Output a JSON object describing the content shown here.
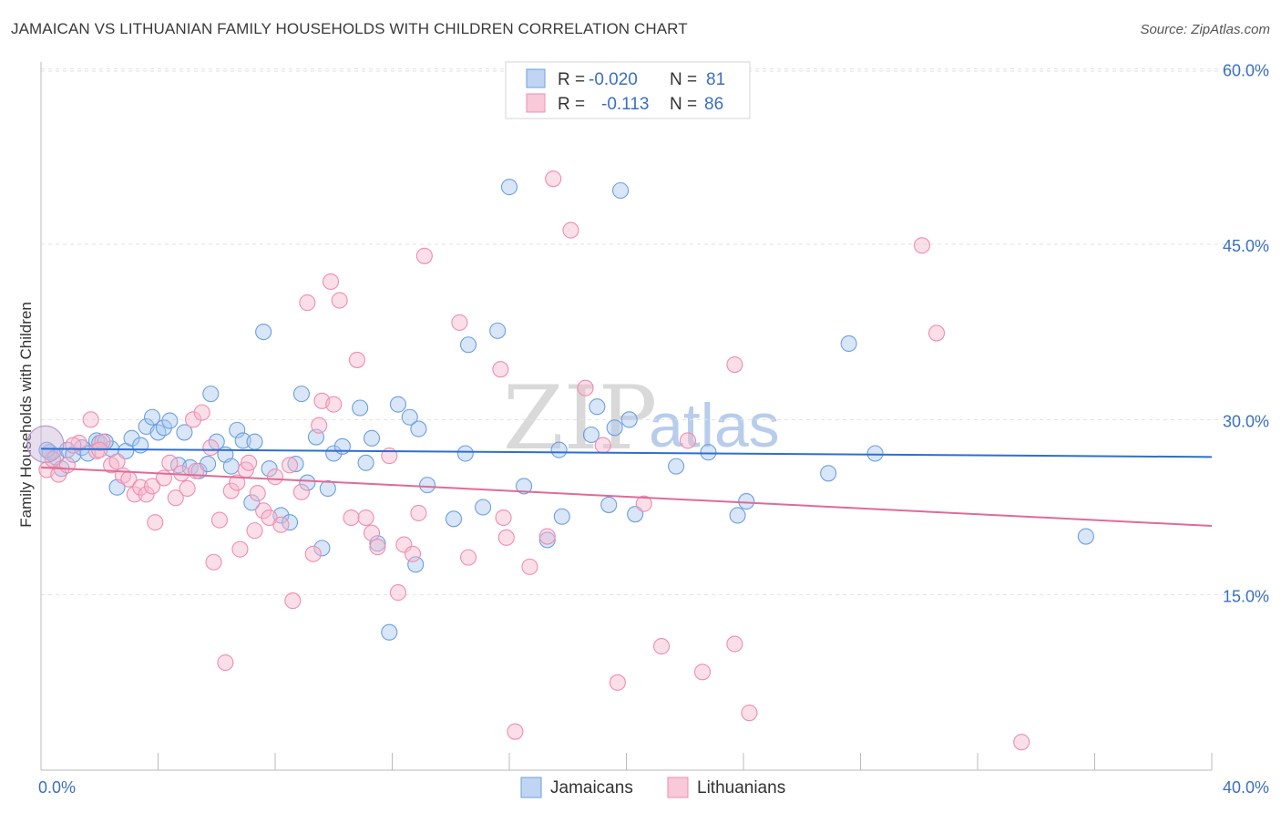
{
  "title": "JAMAICAN VS LITHUANIAN FAMILY HOUSEHOLDS WITH CHILDREN CORRELATION CHART",
  "source": "Source: ZipAtlas.com",
  "watermark": {
    "zip": "ZIP",
    "atlas": "atlas"
  },
  "legend": {
    "rows": [
      {
        "r_label": "R =",
        "r_value": "-0.020",
        "n_label": "N =",
        "n_value": "81",
        "color": "#a9c7ef"
      },
      {
        "r_label": "R =",
        "r_value": "-0.113",
        "n_label": "N =",
        "n_value": "86",
        "color": "#f6b7cb"
      }
    ]
  },
  "bottom_legend": [
    {
      "label": "Jamaicans",
      "color": "#a9c7ef"
    },
    {
      "label": "Lithuanians",
      "color": "#f6b7cb"
    }
  ],
  "chart_data": {
    "type": "scatter",
    "title": "JAMAICAN VS LITHUANIAN FAMILY HOUSEHOLDS WITH CHILDREN CORRELATION CHART",
    "xlabel": "",
    "ylabel": "Family Households with Children",
    "xlim": [
      0,
      40
    ],
    "ylim": [
      0,
      62
    ],
    "x_tick_labels": [
      "0.0%",
      "40.0%"
    ],
    "y_ticks": [
      15,
      30,
      45,
      60
    ],
    "y_tick_labels": [
      "15.0%",
      "30.0%",
      "45.0%",
      "60.0%"
    ],
    "grid": true,
    "series": [
      {
        "name": "Jamaicans",
        "color": "#6c9fe0",
        "line_color": "#2e6fd0",
        "trend": {
          "x": [
            0,
            40
          ],
          "y": [
            27.5,
            26.8
          ]
        },
        "points": [
          [
            0.3,
            27.2
          ],
          [
            0.5,
            26.8
          ],
          [
            0.7,
            25.8
          ],
          [
            0.9,
            27.4
          ],
          [
            1.1,
            27.0
          ],
          [
            1.4,
            27.6
          ],
          [
            1.6,
            27.1
          ],
          [
            1.9,
            28.2
          ],
          [
            2.0,
            28.0
          ],
          [
            2.4,
            27.5
          ],
          [
            2.6,
            24.2
          ],
          [
            2.9,
            27.3
          ],
          [
            3.1,
            28.4
          ],
          [
            3.4,
            27.8
          ],
          [
            3.6,
            29.4
          ],
          [
            3.8,
            30.2
          ],
          [
            4.0,
            28.9
          ],
          [
            4.2,
            29.3
          ],
          [
            4.4,
            29.9
          ],
          [
            4.7,
            26.1
          ],
          [
            4.9,
            28.9
          ],
          [
            5.1,
            25.9
          ],
          [
            5.4,
            25.6
          ],
          [
            5.7,
            26.2
          ],
          [
            5.8,
            32.2
          ],
          [
            6.0,
            28.1
          ],
          [
            6.3,
            27.0
          ],
          [
            6.5,
            26.0
          ],
          [
            6.7,
            29.1
          ],
          [
            6.9,
            28.2
          ],
          [
            7.2,
            22.9
          ],
          [
            7.3,
            28.1
          ],
          [
            7.6,
            37.5
          ],
          [
            7.8,
            25.8
          ],
          [
            8.2,
            21.8
          ],
          [
            8.5,
            21.2
          ],
          [
            8.7,
            26.2
          ],
          [
            8.9,
            32.2
          ],
          [
            9.1,
            24.6
          ],
          [
            9.4,
            28.5
          ],
          [
            9.6,
            19.0
          ],
          [
            9.8,
            24.1
          ],
          [
            10.0,
            27.1
          ],
          [
            10.3,
            27.7
          ],
          [
            10.9,
            31.0
          ],
          [
            11.1,
            26.3
          ],
          [
            11.3,
            28.4
          ],
          [
            11.5,
            19.4
          ],
          [
            11.9,
            11.8
          ],
          [
            12.2,
            31.3
          ],
          [
            12.6,
            30.2
          ],
          [
            12.9,
            29.2
          ],
          [
            12.8,
            17.6
          ],
          [
            13.2,
            24.4
          ],
          [
            14.1,
            21.5
          ],
          [
            14.5,
            27.1
          ],
          [
            14.6,
            36.4
          ],
          [
            15.1,
            22.5
          ],
          [
            15.6,
            37.6
          ],
          [
            16.0,
            49.9
          ],
          [
            16.5,
            24.3
          ],
          [
            17.3,
            19.7
          ],
          [
            17.7,
            27.4
          ],
          [
            17.8,
            21.7
          ],
          [
            18.8,
            28.7
          ],
          [
            19.0,
            31.1
          ],
          [
            19.6,
            29.3
          ],
          [
            19.8,
            49.6
          ],
          [
            19.4,
            22.7
          ],
          [
            20.1,
            30.0
          ],
          [
            20.3,
            21.9
          ],
          [
            21.7,
            26.0
          ],
          [
            22.8,
            27.2
          ],
          [
            23.8,
            21.8
          ],
          [
            24.1,
            23.0
          ],
          [
            26.9,
            25.4
          ],
          [
            27.6,
            36.5
          ],
          [
            28.5,
            27.1
          ],
          [
            35.7,
            20.0
          ],
          [
            0.2,
            27.4
          ],
          [
            2.2,
            28.1
          ]
        ]
      },
      {
        "name": "Lithuanians",
        "color": "#f08db0",
        "line_color": "#e06b97",
        "trend": {
          "x": [
            0,
            40
          ],
          "y": [
            25.9,
            20.9
          ]
        },
        "points": [
          [
            0.2,
            25.7
          ],
          [
            0.4,
            26.6
          ],
          [
            0.6,
            25.3
          ],
          [
            0.9,
            26.1
          ],
          [
            1.3,
            28.0
          ],
          [
            1.7,
            30.0
          ],
          [
            1.9,
            27.3
          ],
          [
            2.1,
            28.1
          ],
          [
            2.4,
            26.1
          ],
          [
            2.6,
            26.4
          ],
          [
            2.8,
            25.2
          ],
          [
            3.0,
            24.9
          ],
          [
            3.2,
            23.6
          ],
          [
            3.4,
            24.2
          ],
          [
            3.6,
            23.6
          ],
          [
            3.8,
            24.3
          ],
          [
            3.9,
            21.2
          ],
          [
            4.2,
            25.0
          ],
          [
            4.4,
            26.3
          ],
          [
            4.6,
            23.3
          ],
          [
            4.8,
            25.4
          ],
          [
            5.0,
            24.1
          ],
          [
            5.2,
            30.0
          ],
          [
            5.5,
            30.6
          ],
          [
            5.8,
            27.6
          ],
          [
            5.9,
            17.8
          ],
          [
            6.1,
            21.4
          ],
          [
            6.3,
            9.2
          ],
          [
            6.5,
            23.9
          ],
          [
            6.7,
            24.6
          ],
          [
            6.8,
            18.9
          ],
          [
            7.0,
            25.7
          ],
          [
            7.1,
            26.3
          ],
          [
            7.3,
            20.5
          ],
          [
            7.4,
            23.7
          ],
          [
            7.6,
            22.2
          ],
          [
            7.8,
            21.6
          ],
          [
            8.0,
            25.1
          ],
          [
            8.2,
            21.0
          ],
          [
            8.5,
            26.1
          ],
          [
            8.6,
            14.5
          ],
          [
            8.9,
            23.8
          ],
          [
            9.1,
            40.0
          ],
          [
            9.3,
            18.5
          ],
          [
            9.5,
            29.5
          ],
          [
            9.6,
            31.6
          ],
          [
            9.9,
            41.8
          ],
          [
            10.0,
            31.3
          ],
          [
            10.2,
            40.2
          ],
          [
            10.6,
            21.6
          ],
          [
            10.8,
            35.1
          ],
          [
            11.1,
            21.6
          ],
          [
            11.3,
            20.3
          ],
          [
            11.5,
            19.1
          ],
          [
            11.9,
            26.9
          ],
          [
            12.2,
            15.2
          ],
          [
            12.4,
            19.3
          ],
          [
            12.7,
            18.5
          ],
          [
            12.9,
            22.0
          ],
          [
            13.1,
            44.0
          ],
          [
            14.3,
            38.3
          ],
          [
            14.6,
            18.2
          ],
          [
            15.7,
            34.3
          ],
          [
            15.8,
            21.6
          ],
          [
            15.9,
            19.9
          ],
          [
            16.2,
            3.3
          ],
          [
            16.7,
            17.4
          ],
          [
            17.3,
            20.0
          ],
          [
            17.5,
            50.6
          ],
          [
            18.1,
            46.2
          ],
          [
            18.6,
            32.7
          ],
          [
            19.2,
            27.8
          ],
          [
            19.7,
            7.5
          ],
          [
            20.6,
            22.8
          ],
          [
            21.2,
            10.6
          ],
          [
            22.1,
            28.2
          ],
          [
            22.6,
            8.4
          ],
          [
            23.7,
            34.7
          ],
          [
            23.7,
            10.8
          ],
          [
            24.2,
            4.9
          ],
          [
            30.1,
            44.9
          ],
          [
            30.6,
            37.4
          ],
          [
            33.5,
            2.4
          ],
          [
            1.1,
            27.8
          ],
          [
            2.0,
            27.4
          ],
          [
            5.3,
            25.6
          ]
        ]
      }
    ]
  }
}
